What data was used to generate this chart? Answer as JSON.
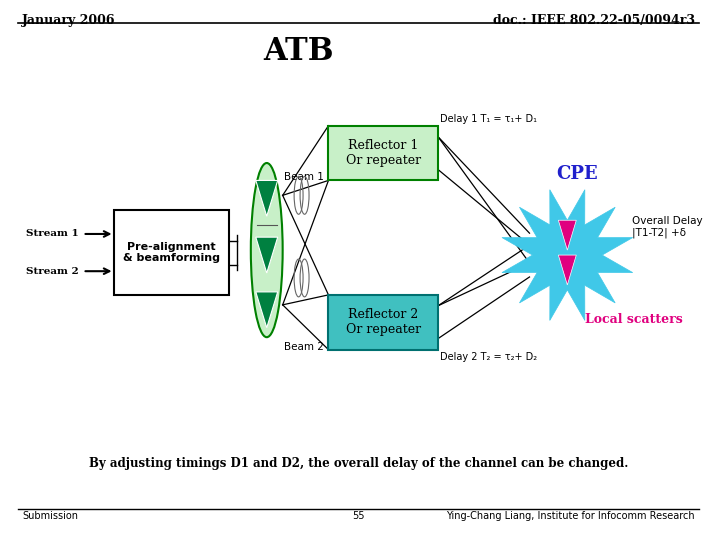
{
  "title": "ATB",
  "header_left": "January 2006",
  "header_right": "doc.: IEEE 802.22-05/0094r3",
  "footer_left": "Submission",
  "footer_center": "55",
  "footer_right": "Ying-Chang Liang, Institute for Infocomm Research",
  "bottom_text": "By adjusting timings D1 and D2, the overall delay of the channel can be changed.",
  "stream1_label": "Stream 1",
  "stream2_label": "Stream 2",
  "box_label": "Pre-alignment\n& beamforming",
  "beam1_label": "Beam 1",
  "beam2_label": "Beam 2",
  "reflector1_label": "Reflector 1\nOr repeater",
  "reflector2_label": "Reflector 2\nOr repeater",
  "delay1_label": "Delay 1 T₁ = τ₁+ D₁",
  "delay2_label": "Delay 2 T₂ = τ₂+ D₂",
  "cpe_label": "CPE",
  "overall_delay_label": "Overall Delay\n|T1-T2| +δ",
  "local_scatters_label": "Local scatters",
  "bg_color": "#ffffff",
  "reflector1_box_color": "#c8f0c8",
  "reflector2_box_color": "#40c0c0",
  "reflector_box_edge": "#008000",
  "ellipse_color": "#c8f0c8",
  "ellipse_edge": "#008000",
  "cpe_color": "#40c8e8",
  "triangle_fill": "#008040",
  "cpe_triangle_color": "#e0007f",
  "line_color": "#000000",
  "cpe_text_color": "#2020cc",
  "local_scatter_text_color": "#e0007f"
}
